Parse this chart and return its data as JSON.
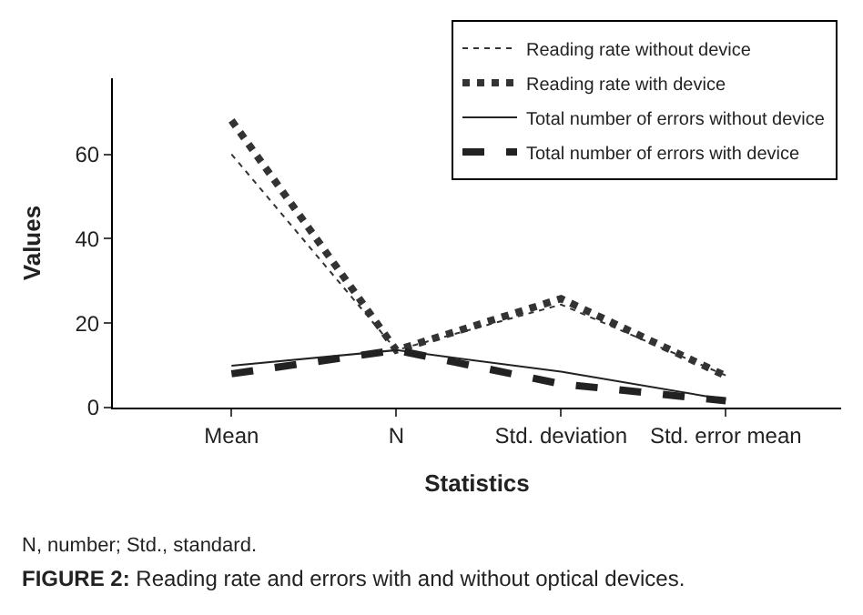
{
  "chart_data": {
    "type": "line",
    "xlabel": "Statistics",
    "ylabel": "Values",
    "categories": [
      "Mean",
      "N",
      "Std. deviation",
      "Std. error mean"
    ],
    "series": [
      {
        "name": "Reading rate without device",
        "color": "#333333",
        "line_style": "dotted",
        "values": [
          60,
          13.6,
          24.4,
          7.6
        ]
      },
      {
        "name": "Reading rate with device",
        "color": "#333333",
        "line_style": "dotted",
        "values": [
          68,
          13.6,
          25.8,
          7.5
        ]
      },
      {
        "name": "Total number of errors without device",
        "color": "#222222",
        "line_style": "solid",
        "values": [
          9.9,
          13.6,
          8.5,
          1.9
        ]
      },
      {
        "name": "Total number of errors with device",
        "color": "#222222",
        "line_style": "dashed",
        "values": [
          8,
          13.6,
          5.6,
          1.6
        ]
      }
    ],
    "ylim": [
      0,
      78
    ],
    "yticks": [
      0,
      20,
      40,
      60
    ],
    "legend": "top right",
    "marker": "none",
    "annotations": [
      "N, number; Std., standard.",
      "FIGURE 2: Reading rate and errors with and without optical devices."
    ]
  }
}
